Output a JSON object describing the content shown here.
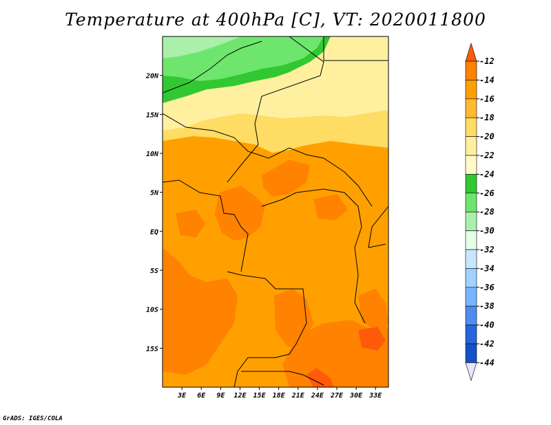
{
  "title": "Temperature at 400hPa [C], VT: 2020011800",
  "credit": "GrADS: IGES/COLA",
  "map": {
    "lat_labels": [
      "20N",
      "15N",
      "10N",
      "5N",
      "EQ",
      "5S",
      "10S",
      "15S"
    ],
    "lon_labels": [
      "3E",
      "6E",
      "9E",
      "12E",
      "15E",
      "18E",
      "21E",
      "24E",
      "27E",
      "30E",
      "33E"
    ],
    "lat_values": [
      20,
      15,
      10,
      5,
      0,
      -5,
      -10,
      -15
    ],
    "lon_values": [
      3,
      6,
      9,
      12,
      15,
      18,
      21,
      24,
      27,
      30,
      33
    ],
    "extent": {
      "lon_min": 0,
      "lon_max": 35,
      "lat_min": -20,
      "lat_max": 25
    }
  },
  "colorbar": {
    "labels": [
      "-12",
      "-14",
      "-16",
      "-18",
      "-20",
      "-22",
      "-24",
      "-26",
      "-28",
      "-30",
      "-32",
      "-34",
      "-36",
      "-38",
      "-40",
      "-42",
      "-44"
    ],
    "colors": [
      "#ff5a0a",
      "#ff8200",
      "#ffa000",
      "#ffb932",
      "#ffdc64",
      "#fff0a0",
      "#fffac8",
      "#32c832",
      "#6ee66e",
      "#aaf0aa",
      "#e6ffe6",
      "#c8e6ff",
      "#a0d2ff",
      "#78b4ff",
      "#508cf0",
      "#2864dc",
      "#1450c8",
      "#0a3cb4",
      "#000078",
      "#e6e6ff"
    ]
  }
}
